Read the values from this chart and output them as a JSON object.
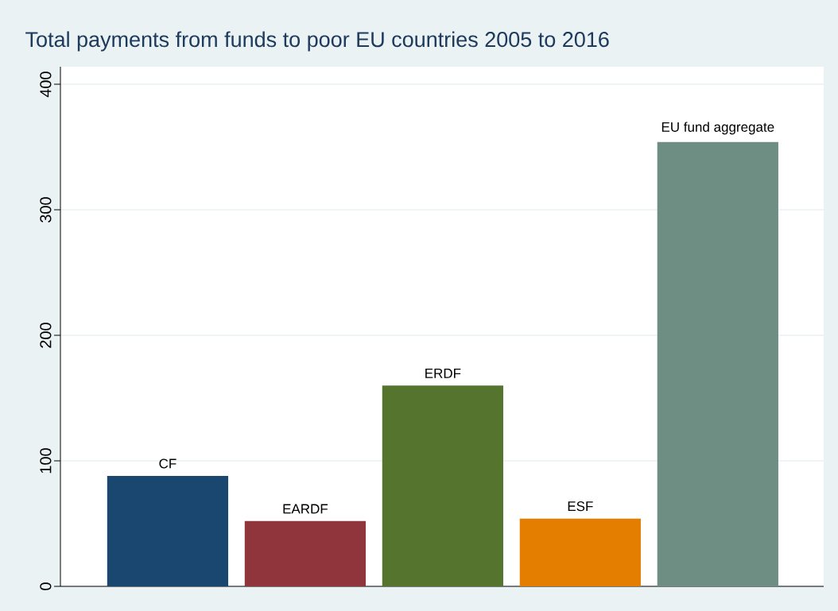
{
  "chart_data": {
    "type": "bar",
    "title": "Total payments from funds to poor EU countries 2005 to 2016",
    "categories": [
      "CF",
      "EARDF",
      "ERDF",
      "ESF",
      "EU fund aggregate"
    ],
    "values": [
      88,
      52,
      160,
      54,
      354
    ],
    "colors": [
      "#1a476f",
      "#90353b",
      "#55752f",
      "#e37e00",
      "#6e8e84"
    ],
    "ylim": [
      0,
      414
    ],
    "yticks": [
      0,
      100,
      200,
      300,
      400
    ],
    "grid": "y"
  }
}
